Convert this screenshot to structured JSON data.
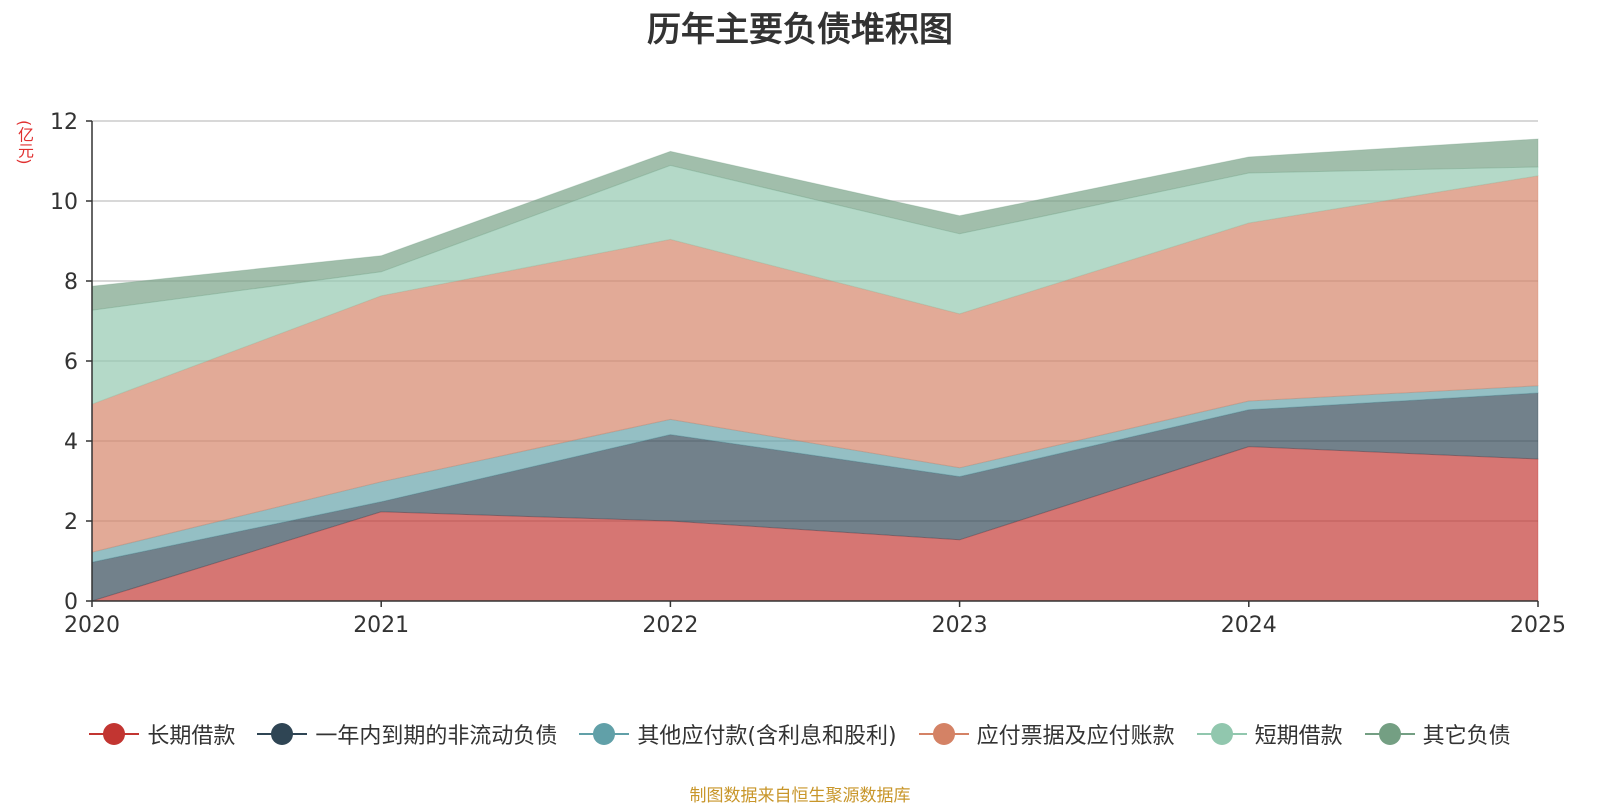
{
  "chart_data": {
    "type": "area",
    "stacked": true,
    "title": "历年主要负债堆积图",
    "ylabel": "(亿元)",
    "x": [
      "2020",
      "2021",
      "2022",
      "2023",
      "2024",
      "2025"
    ],
    "ylim": [
      0,
      12
    ],
    "yticks": [
      "0",
      "2",
      "4",
      "6",
      "8",
      "10",
      "12"
    ],
    "series": [
      {
        "name": "长期借款",
        "color": "#c23531",
        "values": [
          0.0,
          2.23,
          2.0,
          1.53,
          3.86,
          3.55
        ]
      },
      {
        "name": "一年内到期的非流动负债",
        "color": "#2f4554",
        "values": [
          0.97,
          0.25,
          2.16,
          1.58,
          0.92,
          1.65
        ]
      },
      {
        "name": "其他应付款(含利息和股利)",
        "color": "#61a0a8",
        "values": [
          0.25,
          0.5,
          0.38,
          0.22,
          0.22,
          0.18
        ]
      },
      {
        "name": "应付票据及应付账款",
        "color": "#d48265",
        "values": [
          3.7,
          4.65,
          4.5,
          3.85,
          4.45,
          5.25
        ]
      },
      {
        "name": "短期借款",
        "color": "#91c7ae",
        "values": [
          2.35,
          0.6,
          1.85,
          2.0,
          1.25,
          0.22
        ]
      },
      {
        "name": "其它负债",
        "color": "#749f83",
        "values": [
          0.6,
          0.4,
          0.35,
          0.45,
          0.4,
          0.7
        ]
      }
    ],
    "legend_position": "bottom",
    "grid": true,
    "source": "制图数据来自恒生聚源数据库"
  }
}
